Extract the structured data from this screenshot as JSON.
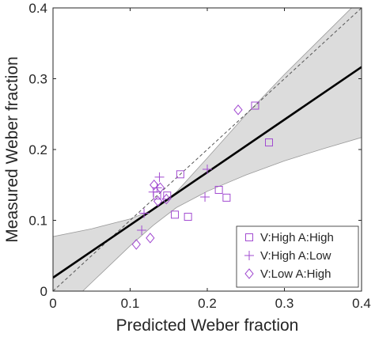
{
  "chart_data": {
    "type": "scatter",
    "xlabel": "Predicted Weber fraction",
    "ylabel": "Measured Weber fraction",
    "xlim": [
      0,
      0.4
    ],
    "ylim": [
      0,
      0.4
    ],
    "x_ticks": [
      0,
      0.1,
      0.2,
      0.3,
      0.4
    ],
    "y_ticks": [
      0,
      0.1,
      0.2,
      0.3,
      0.4
    ],
    "x_tick_labels": [
      "0",
      "0.1",
      "0.2",
      "0.3",
      "0.4"
    ],
    "y_tick_labels": [
      "0",
      "0.1",
      "0.2",
      "0.3",
      "0.4"
    ],
    "grid": false,
    "box": true,
    "legend_position": "bottom-right",
    "marker_color": "#a24bd1",
    "series": [
      {
        "name": "V:High A:High",
        "marker": "square",
        "points": [
          [
            0.28,
            0.21
          ],
          [
            0.262,
            0.262
          ],
          [
            0.225,
            0.132
          ],
          [
            0.215,
            0.143
          ],
          [
            0.165,
            0.165
          ],
          [
            0.175,
            0.105
          ],
          [
            0.158,
            0.108
          ],
          [
            0.148,
            0.135
          ],
          [
            0.135,
            0.135
          ]
        ]
      },
      {
        "name": "V:High A:Low",
        "marker": "plus",
        "points": [
          [
            0.2,
            0.172
          ],
          [
            0.197,
            0.133
          ],
          [
            0.138,
            0.161
          ],
          [
            0.135,
            0.146
          ],
          [
            0.13,
            0.14
          ],
          [
            0.118,
            0.11
          ],
          [
            0.115,
            0.086
          ]
        ]
      },
      {
        "name": "V:Low A:High",
        "marker": "diamond",
        "points": [
          [
            0.24,
            0.256
          ],
          [
            0.147,
            0.13
          ],
          [
            0.139,
            0.146
          ],
          [
            0.131,
            0.15
          ],
          [
            0.136,
            0.127
          ],
          [
            0.126,
            0.075
          ],
          [
            0.108,
            0.066
          ]
        ]
      }
    ],
    "fit_line": {
      "intercept": 0.019,
      "slope": 0.744,
      "color": "#000000"
    },
    "identity_line": {
      "style": "dashed",
      "color": "#555555"
    },
    "confidence_band": {
      "color": "#dcdcdc",
      "upper": [
        [
          0.0,
          0.077
        ],
        [
          0.05,
          0.088
        ],
        [
          0.1,
          0.102
        ],
        [
          0.13,
          0.115
        ],
        [
          0.16,
          0.14
        ],
        [
          0.2,
          0.188
        ],
        [
          0.25,
          0.249
        ],
        [
          0.3,
          0.306
        ],
        [
          0.35,
          0.36
        ],
        [
          0.4,
          0.414
        ]
      ],
      "lower": [
        [
          0.0,
          -0.04
        ],
        [
          0.05,
          0.012
        ],
        [
          0.1,
          0.064
        ],
        [
          0.13,
          0.093
        ],
        [
          0.16,
          0.118
        ],
        [
          0.2,
          0.141
        ],
        [
          0.25,
          0.164
        ],
        [
          0.3,
          0.184
        ],
        [
          0.35,
          0.201
        ],
        [
          0.4,
          0.217
        ]
      ]
    }
  }
}
